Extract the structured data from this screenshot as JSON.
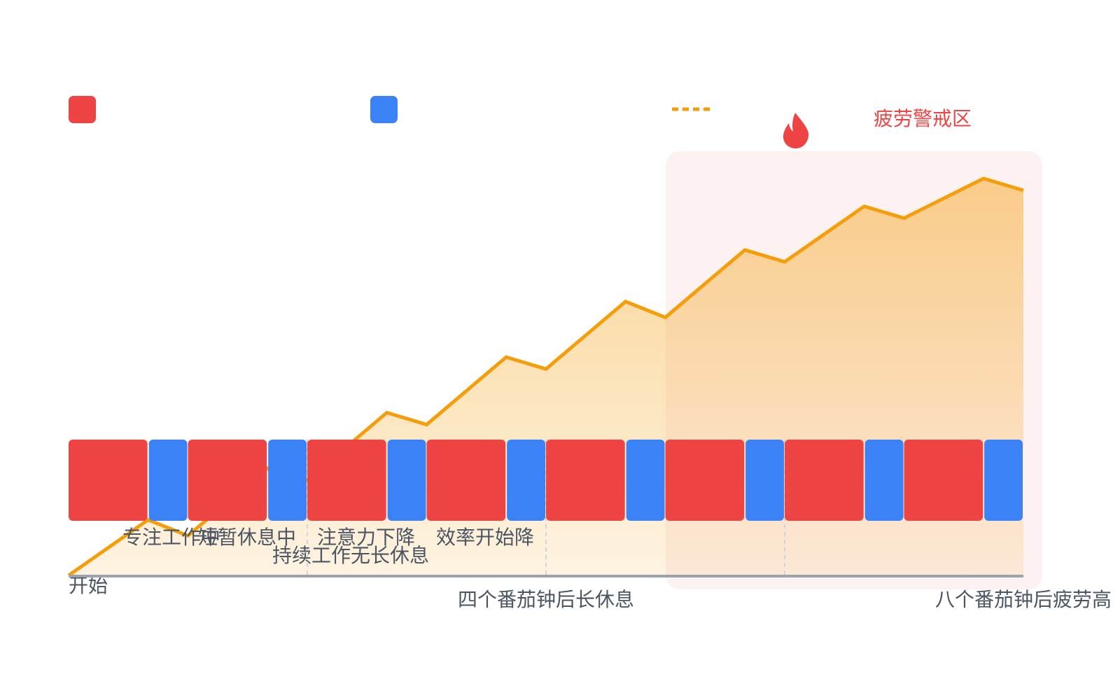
{
  "zone_label": "疲劳警戒区",
  "fatigue": {
    "start": 0,
    "values": [
      14,
      10,
      27,
      24,
      41,
      38,
      55,
      52,
      69,
      65,
      82,
      79,
      93,
      90,
      100,
      97
    ],
    "ylim": [
      0,
      100
    ]
  },
  "notes": [
    "专注工作中",
    "短暂休息中",
    "持续工作无长休息",
    "注意力下降",
    "效率开始降"
  ],
  "axis_labels": [
    "开始",
    "四个番茄钟后长休息",
    "八个番茄钟后疲劳高"
  ]
}
